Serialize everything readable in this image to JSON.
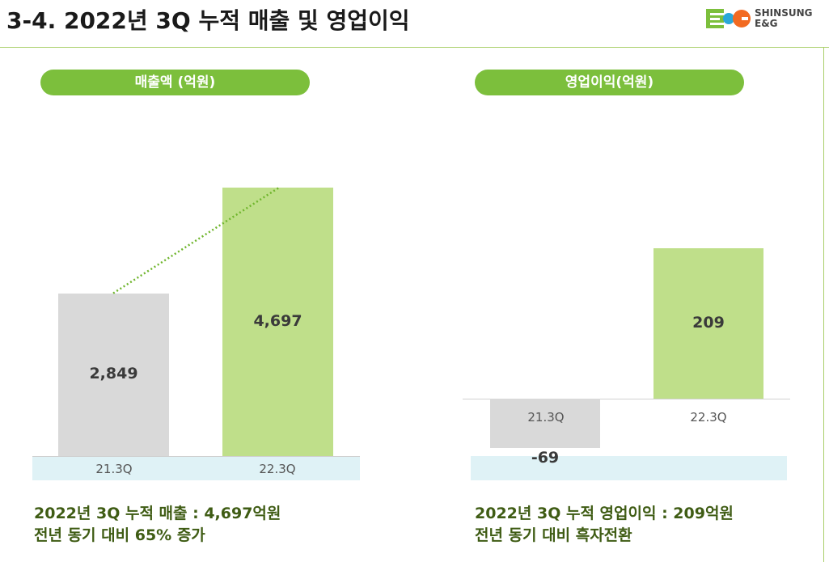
{
  "title": "3-4. 2022년 3Q 누적 매출 및 영업이익",
  "logo": {
    "line1": "SHINSUNG",
    "line2": "E&G"
  },
  "colors": {
    "accent": "#7cbf3c",
    "bar_prev": "#d9d9d9",
    "bar_curr": "#bfdf8a",
    "band": "#dff2f6"
  },
  "chart_data": [
    {
      "type": "bar",
      "title": "매출액 (억원)",
      "categories": [
        "21.3Q",
        "22.3Q"
      ],
      "values": [
        2849,
        4697
      ],
      "value_labels": [
        "2,849",
        "4,697"
      ]
    },
    {
      "type": "bar",
      "title": "영업이익(억원)",
      "categories": [
        "21.3Q",
        "22.3Q"
      ],
      "values": [
        -69,
        209
      ],
      "value_labels": [
        "-69",
        "209"
      ]
    }
  ],
  "captions": {
    "left": [
      "2022년 3Q 누적 매출 : 4,697억원",
      "전년 동기 대비 65% 증가"
    ],
    "right": [
      "2022년 3Q 누적 영업이익 : 209억원",
      "전년 동기 대비 흑자전환"
    ]
  }
}
